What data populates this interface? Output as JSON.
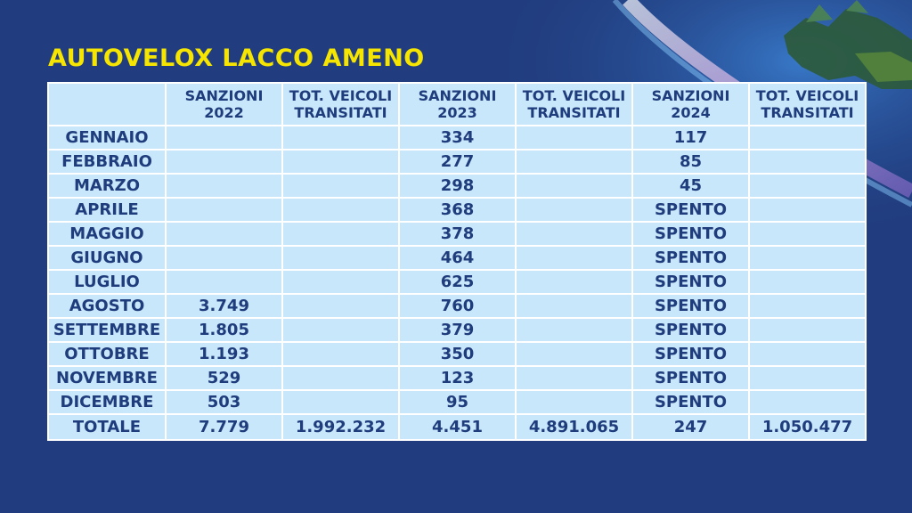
{
  "title": "AUTOVELOX LACCO AMENO",
  "chart_data": {
    "type": "table",
    "title": "AUTOVELOX LACCO AMENO",
    "columns": [
      {
        "line1": "",
        "line2": ""
      },
      {
        "line1": "SANZIONI",
        "line2": "2022"
      },
      {
        "line1": "TOT. VEICOLI",
        "line2": "TRANSITATI"
      },
      {
        "line1": "SANZIONI",
        "line2": "2023"
      },
      {
        "line1": "TOT. VEICOLI",
        "line2": "TRANSITATI"
      },
      {
        "line1": "SANZIONI",
        "line2": "2024"
      },
      {
        "line1": "TOT. VEICOLI",
        "line2": "TRANSITATI"
      }
    ],
    "rows": [
      [
        "GENNAIO",
        "",
        "",
        "334",
        "",
        "117",
        ""
      ],
      [
        "FEBBRAIO",
        "",
        "",
        "277",
        "",
        "85",
        ""
      ],
      [
        "MARZO",
        "",
        "",
        "298",
        "",
        "45",
        ""
      ],
      [
        "APRILE",
        "",
        "",
        "368",
        "",
        "SPENTO",
        ""
      ],
      [
        "MAGGIO",
        "",
        "",
        "378",
        "",
        "SPENTO",
        ""
      ],
      [
        "GIUGNO",
        "",
        "",
        "464",
        "",
        "SPENTO",
        ""
      ],
      [
        "LUGLIO",
        "",
        "",
        "625",
        "",
        "SPENTO",
        ""
      ],
      [
        "AGOSTO",
        "3.749",
        "",
        "760",
        "",
        "SPENTO",
        ""
      ],
      [
        "SETTEMBRE",
        "1.805",
        "",
        "379",
        "",
        "SPENTO",
        ""
      ],
      [
        "OTTOBRE",
        "1.193",
        "",
        "350",
        "",
        "SPENTO",
        ""
      ],
      [
        "NOVEMBRE",
        "529",
        "",
        "123",
        "",
        "SPENTO",
        ""
      ],
      [
        "DICEMBRE",
        "503",
        "",
        "95",
        "",
        "SPENTO",
        ""
      ]
    ],
    "total": [
      "TOTALE",
      "7.779",
      "1.992.232",
      "4.451",
      "4.891.065",
      "247",
      "1.050.477"
    ]
  },
  "colors": {
    "background": "#213d7f",
    "title": "#f5e500",
    "cell": "#c9e7fb",
    "text": "#1f3c7c",
    "grid": "#ffffff"
  }
}
